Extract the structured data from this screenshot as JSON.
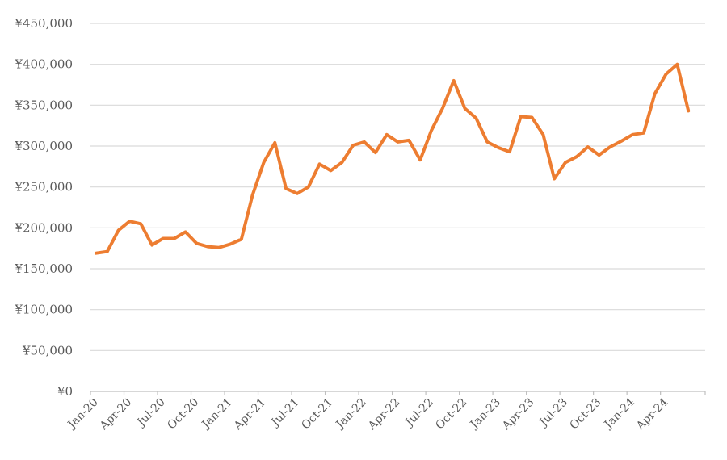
{
  "chart_data": {
    "type": "line",
    "title": "",
    "xlabel": "",
    "ylabel": "",
    "ylim": [
      0,
      450000
    ],
    "y_ticks": [
      0,
      50000,
      100000,
      150000,
      200000,
      250000,
      300000,
      350000,
      400000,
      450000
    ],
    "y_tick_labels": [
      "¥0",
      "¥50,000",
      "¥100,000",
      "¥150,000",
      "¥200,000",
      "¥250,000",
      "¥300,000",
      "¥350,000",
      "¥400,000",
      "¥450,000"
    ],
    "x_tick_labels": [
      "Jan-20",
      "Apr-20",
      "Jul-20",
      "Oct-20",
      "Jan-21",
      "Apr-21",
      "Jul-21",
      "Oct-21",
      "Jan-22",
      "Apr-22",
      "Jul-22",
      "Oct-22",
      "Jan-23",
      "Apr-23",
      "Jul-23",
      "Oct-23",
      "Jan-24",
      "Apr-24"
    ],
    "grid": true,
    "legend": "none",
    "series": [
      {
        "color": "#ED7D31",
        "x": [
          "Jan-20",
          "Feb-20",
          "Mar-20",
          "Apr-20",
          "May-20",
          "Jun-20",
          "Jul-20",
          "Aug-20",
          "Sep-20",
          "Oct-20",
          "Nov-20",
          "Dec-20",
          "Jan-21",
          "Feb-21",
          "Mar-21",
          "Apr-21",
          "May-21",
          "Jun-21",
          "Jul-21",
          "Aug-21",
          "Sep-21",
          "Oct-21",
          "Nov-21",
          "Dec-21",
          "Jan-22",
          "Feb-22",
          "Mar-22",
          "Apr-22",
          "May-22",
          "Jun-22",
          "Jul-22",
          "Aug-22",
          "Sep-22",
          "Oct-22",
          "Nov-22",
          "Dec-22",
          "Jan-23",
          "Feb-23",
          "Mar-23",
          "Apr-23",
          "May-23",
          "Jun-23",
          "Jul-23",
          "Aug-23",
          "Sep-23",
          "Oct-23",
          "Nov-23",
          "Dec-23",
          "Jan-24",
          "Feb-24",
          "Mar-24",
          "Apr-24",
          "May-24",
          "Jun-24",
          "Jul-24"
        ],
        "values": [
          169000,
          171000,
          197000,
          208000,
          205000,
          179000,
          187000,
          187000,
          195000,
          181000,
          177000,
          176000,
          180000,
          186000,
          240000,
          280000,
          304000,
          248000,
          242000,
          250000,
          278000,
          270000,
          280000,
          301000,
          305000,
          292000,
          314000,
          305000,
          307000,
          283000,
          319000,
          346000,
          380000,
          346000,
          334000,
          305000,
          298000,
          293000,
          336000,
          335000,
          314000,
          260000,
          280000,
          287000,
          299000,
          289000,
          299000,
          306000,
          314000,
          316000,
          364000,
          388000,
          400000,
          343000,
          null
        ]
      }
    ]
  }
}
